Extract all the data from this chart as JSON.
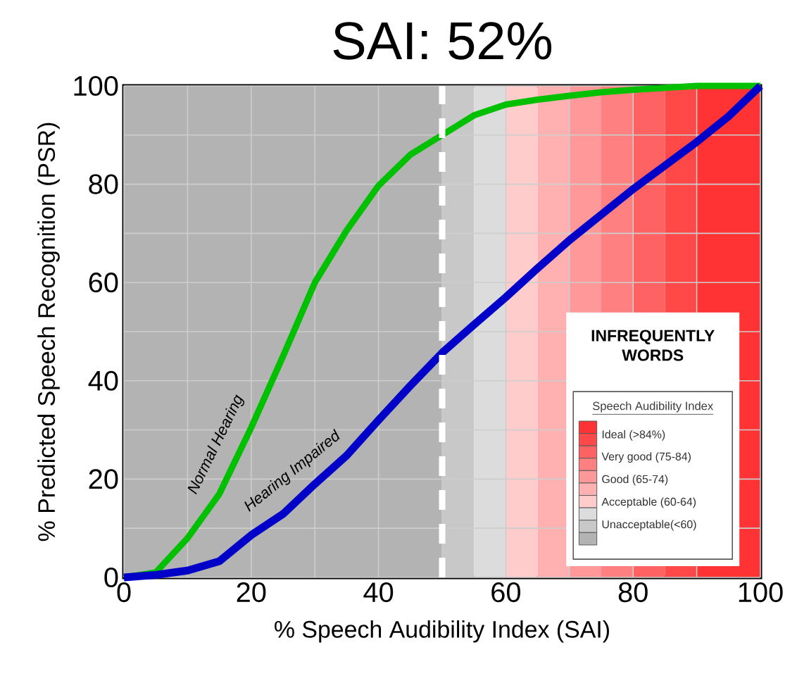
{
  "chart_data": {
    "type": "line",
    "title": "SAI: 52%",
    "xlabel": "% Speech Audibility Index (SAI)",
    "ylabel": "% Predicted Speech Recognition (PSR)",
    "x": [
      0,
      5,
      10,
      15,
      20,
      25,
      30,
      35,
      40,
      45,
      50,
      55,
      60,
      65,
      70,
      75,
      80,
      85,
      90,
      95,
      100
    ],
    "series": [
      {
        "name": "Normal Hearing",
        "color": "#00c000",
        "values": [
          0,
          1,
          8,
          17,
          30.5,
          45,
          60,
          70.6,
          79.7,
          86,
          90,
          94,
          96.2,
          97.2,
          98,
          98.7,
          99.2,
          99.6,
          100,
          100,
          100
        ]
      },
      {
        "name": "Hearing Impaired",
        "color": "#0000c8",
        "values": [
          0,
          0.5,
          1.4,
          3.3,
          8.6,
          12.9,
          19,
          24.8,
          32,
          39,
          45.7,
          51.4,
          57,
          62.9,
          68.6,
          73.8,
          79,
          83.8,
          88.6,
          93.8,
          100
        ]
      }
    ],
    "xlim": [
      0,
      100
    ],
    "ylim": [
      0,
      100
    ],
    "xticks": [
      0,
      20,
      40,
      60,
      80,
      100
    ],
    "yticks": [
      0,
      20,
      40,
      60,
      80,
      100
    ],
    "grid": true,
    "marker": "none",
    "line_style": "solid",
    "bands": [
      {
        "axis": "x",
        "from": 0,
        "to": 50,
        "color": "#b3b3b3"
      },
      {
        "axis": "x",
        "from": 50,
        "to": 55,
        "color": "#c8c8c8"
      },
      {
        "axis": "x",
        "from": 55,
        "to": 60,
        "color": "#dcdcdc"
      },
      {
        "axis": "x",
        "from": 60,
        "to": 65,
        "color": "#ffcccc"
      },
      {
        "axis": "x",
        "from": 65,
        "to": 70,
        "color": "#ffb0b0"
      },
      {
        "axis": "x",
        "from": 70,
        "to": 75,
        "color": "#ff9898"
      },
      {
        "axis": "x",
        "from": 75,
        "to": 80,
        "color": "#ff8080"
      },
      {
        "axis": "x",
        "from": 80,
        "to": 85,
        "color": "#ff6262"
      },
      {
        "axis": "x",
        "from": 85,
        "to": 90,
        "color": "#ff4848"
      },
      {
        "axis": "x",
        "from": 90,
        "to": 100,
        "color": "#ff3333"
      }
    ],
    "ref_lines": [
      {
        "axis": "x",
        "value": 50,
        "color": "#ffffff",
        "line_style": "dashed"
      }
    ],
    "annotations": [
      "INFREQUENTLY WORDS",
      "Speech Audibility Index",
      "Ideal (>84%)",
      "Very good (75-84)",
      "Good (65-74)",
      "Acceptable (60-64)",
      "Unacceptable(<60)"
    ]
  }
}
